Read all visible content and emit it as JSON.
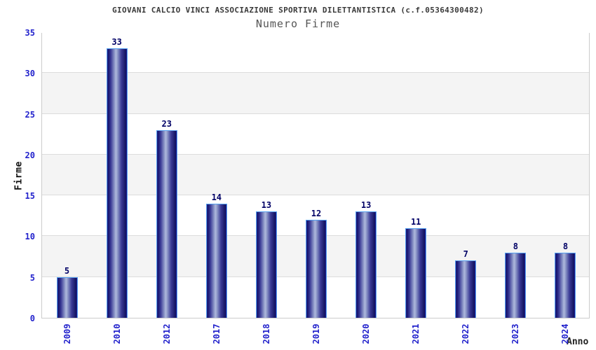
{
  "chart_data": {
    "type": "bar",
    "title": "GIOVANI CALCIO VINCI ASSOCIAZIONE SPORTIVA DILETTANTISTICA (c.f.05364300482)",
    "subtitle": "Numero Firme",
    "categories": [
      "2009",
      "2010",
      "2012",
      "2017",
      "2018",
      "2019",
      "2020",
      "2021",
      "2022",
      "2023",
      "2024"
    ],
    "values": [
      5,
      33,
      23,
      14,
      13,
      12,
      13,
      11,
      7,
      8,
      8
    ],
    "xlabel": "Anno",
    "ylabel": "Firme",
    "ylim": [
      0,
      35
    ],
    "ytick_step": 5,
    "yticks": [
      0,
      5,
      10,
      15,
      20,
      25,
      30,
      35
    ],
    "grid": "horizontal-bands",
    "legend_position": "none",
    "colors": {
      "bar_dark": "#15156e",
      "bar_highlight": "#aeb8dc",
      "bar_border": "#55a0f0",
      "tick_label": "#2222cc",
      "value_label": "#000066",
      "band_white": "#ffffff",
      "band_gray": "#f4f4f4",
      "gridline": "#dcdcdc",
      "plot_border": "#cccccc",
      "title": "#3a3a3a",
      "subtitle": "#555555"
    }
  }
}
